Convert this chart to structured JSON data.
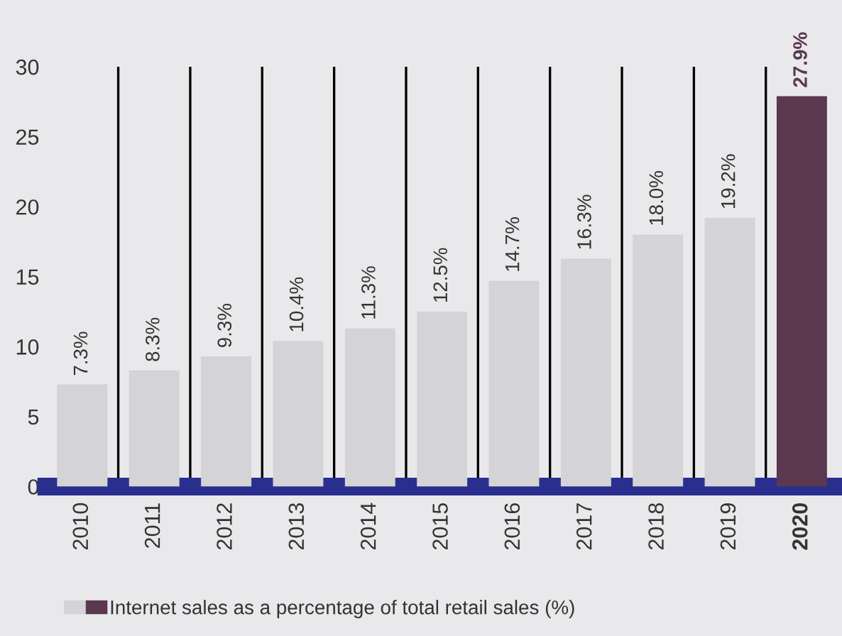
{
  "chart_data": {
    "type": "bar",
    "categories": [
      "2010",
      "2011",
      "2012",
      "2013",
      "2014",
      "2015",
      "2016",
      "2017",
      "2018",
      "2019",
      "2020"
    ],
    "series": [
      {
        "name": "Internet sales as a percentage of total retail sales (%)",
        "values": [
          7.3,
          8.3,
          9.3,
          10.4,
          11.3,
          12.5,
          14.7,
          16.3,
          18.0,
          19.2,
          27.9
        ],
        "colors": [
          "#d4d4d6",
          "#d4d4d6",
          "#d4d4d6",
          "#d4d4d6",
          "#d4d4d6",
          "#d4d4d6",
          "#d4d4d6",
          "#d4d4d6",
          "#d4d4d6",
          "#d4d4d6",
          "#5b3850"
        ]
      }
    ],
    "value_labels": [
      "7.3%",
      "8.3%",
      "9.3%",
      "10.4%",
      "11.3%",
      "12.5%",
      "14.7%",
      "16.3%",
      "18.0%",
      "19.2%",
      "27.9%"
    ],
    "ylim": [
      0,
      30
    ],
    "yticks": [
      0,
      5,
      10,
      15,
      20,
      25,
      30
    ],
    "grid": "x",
    "legend": "bottom left"
  }
}
